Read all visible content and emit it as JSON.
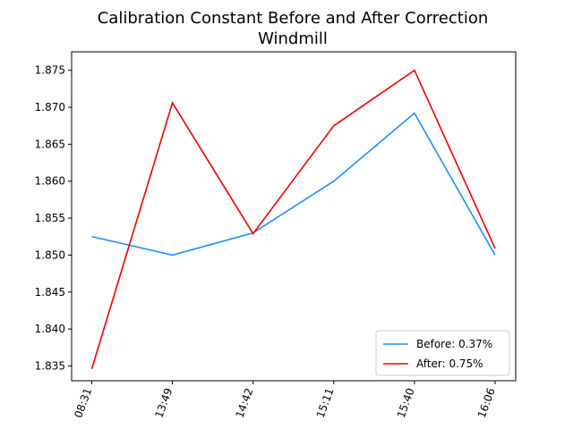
{
  "chart_data": {
    "type": "line",
    "title": "Calibration Constant Before and After Correction",
    "subtitle": "Windmill",
    "xlabel": "",
    "ylabel": "",
    "categories": [
      "08:31",
      "13:49",
      "14:42",
      "15:11",
      "15:40",
      "16:06"
    ],
    "series": [
      {
        "name": "Before: 0.37%",
        "color": "#1e90ff",
        "values": [
          1.8525,
          1.85,
          1.853,
          1.86,
          1.8692,
          1.85
        ]
      },
      {
        "name": "After: 0.75%",
        "color": "#ee0000",
        "values": [
          1.8346,
          1.8706,
          1.8529,
          1.8675,
          1.875,
          1.8509
        ]
      }
    ],
    "ylim": [
      1.833,
      1.8775
    ],
    "yticks": [
      "1.835",
      "1.840",
      "1.845",
      "1.850",
      "1.855",
      "1.860",
      "1.865",
      "1.870",
      "1.875"
    ],
    "grid": false,
    "legend_position": "lower-right"
  }
}
